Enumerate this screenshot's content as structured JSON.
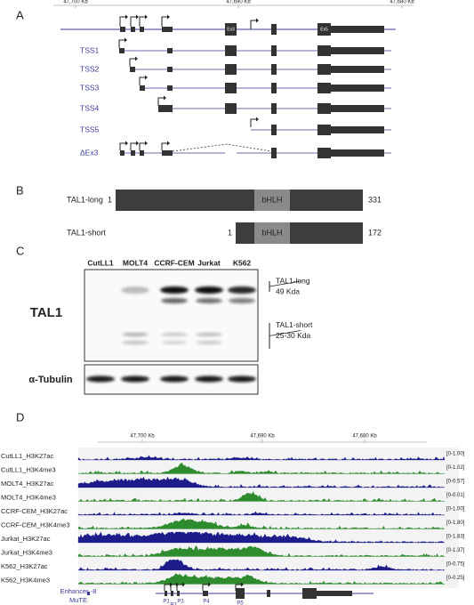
{
  "panels": {
    "a": {
      "label": "A",
      "ruler": [
        "47,700 Kb",
        "47,690 Kb",
        "47,680 Kb"
      ],
      "exon_labels": [
        "Ex3",
        "Ex5"
      ],
      "isoforms": [
        "TSS1",
        "TSS2",
        "TSS3",
        "TSS4",
        "TSS5",
        "ΔEx3"
      ]
    },
    "b": {
      "label": "B",
      "proteins": [
        {
          "name": "TAL1-long",
          "start": 1,
          "end": 331,
          "domain": "bHLH"
        },
        {
          "name": "TAL1-short",
          "start": 1,
          "end": 172,
          "domain": "bHLH"
        }
      ]
    },
    "c": {
      "label": "C",
      "cell_lines": [
        "CutLL1",
        "MOLT4",
        "CCRF-CEM",
        "Jurkat",
        "K562"
      ],
      "protein": "TAL1",
      "loading": "α-Tubulin",
      "bands": [
        {
          "name": "TAL1-long",
          "size": "49 Kda"
        },
        {
          "name": "TAL1-short",
          "size": "25-30 Kda"
        }
      ]
    },
    "d": {
      "label": "D",
      "ruler": [
        "47,700 Kb",
        "47,690 Kb",
        "47,680 Kb"
      ],
      "tracks": [
        {
          "name": "CutLL1_H3K27ac",
          "range": "[0-1.00]"
        },
        {
          "name": "CutLL1_H3K4me3",
          "range": "[0-1.02]"
        },
        {
          "name": "MOLT4_H3K27ac",
          "range": "[0-0.57]"
        },
        {
          "name": "MOLT4_H3K4me3",
          "range": "[0-0.01]"
        },
        {
          "name": "CCRF-CEM_H3K27ac",
          "range": "[0-1.00]"
        },
        {
          "name": "CCRF-CEM_H3K4me3",
          "range": "[0-1.80]"
        },
        {
          "name": "Jurkat_H3K27ac",
          "range": "[0-1.83]"
        },
        {
          "name": "Jurkat_H3K4me3",
          "range": "[0-1.37]"
        },
        {
          "name": "K562_H3K27ac",
          "range": "[0-0.75]"
        },
        {
          "name": "K562_H3K4me3",
          "range": "[0-0.25]"
        }
      ],
      "promoters": [
        "P1",
        "P2",
        "P3",
        "P4",
        "P5"
      ],
      "enhancer": [
        "Enhancer -8",
        "MuTE"
      ]
    }
  }
}
